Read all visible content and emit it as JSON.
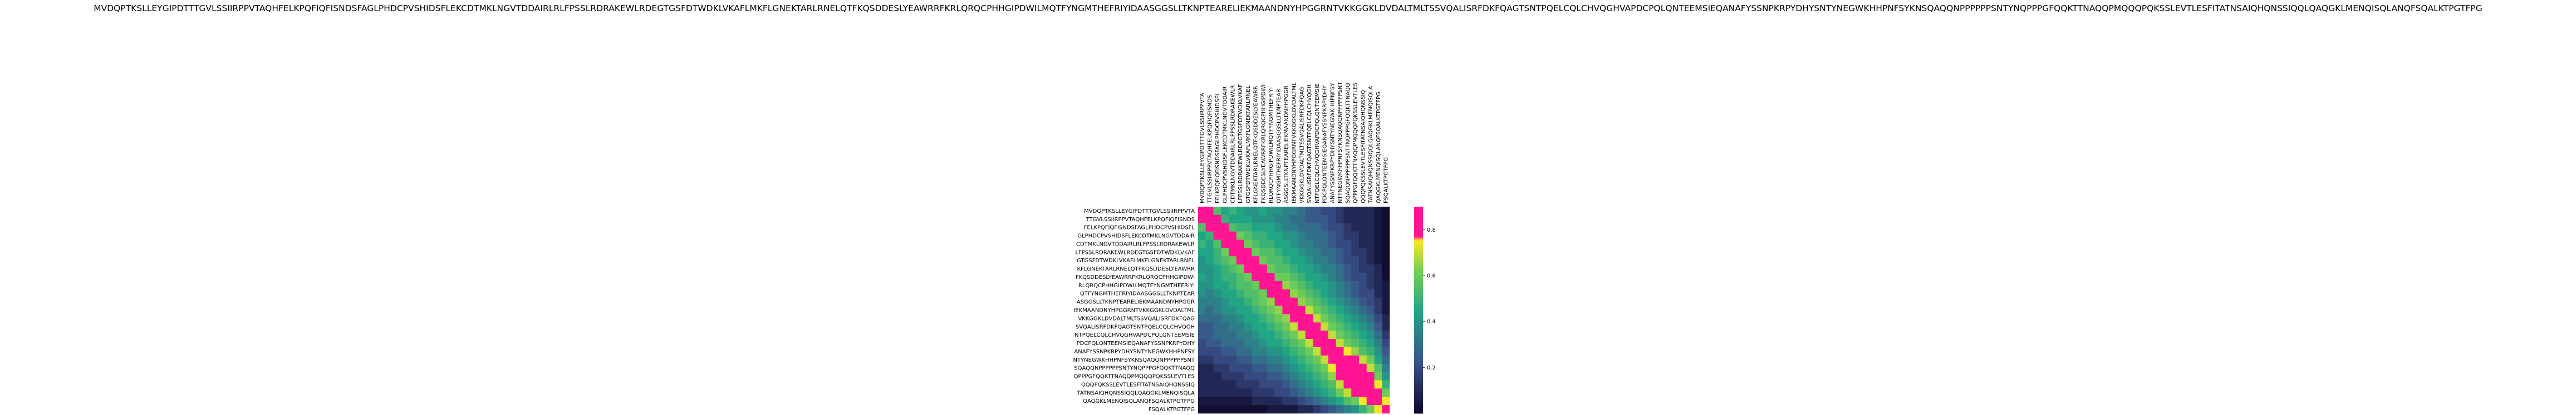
{
  "chart_data": {
    "type": "heatmap",
    "title": "MVDQPTKSLLEYGIPDTTTGVLSSIIRPPVTAQHFELKPQFIQFISNDSFAGLPHDCPVSHIDSFLEKCDTMKLNGVTDDAIRLRLFPSSLRDRAKEWLRDEGTGSFDTWDKLVKAFLMKFLGNEKTARLRNELQTFKQSDDESLYEAWRRFKRLQRQCPHHGIPDWILMQTFYNGMTHEFRIYIDAASGGSLLTKNPTEARELIEKMAANDNYHPGGRNTVKKGGKLDVDALTMLTSSVQALISRFDKFQAGTSNTPQELCQLCHVQGHVAPDCPQLQNTEEMSIEQANAFYSSNPKRPYDHYSNTYNEGWKHHPNFSYKNSQAQQNPPPPPPSNTYNQPPPGFQQKTTNAQQPMQQQPQKSSLEVTLESFITATNSAIQHQNSSIQQLQAQGKLMENQISQLANQFSQALKTPGTFPG",
    "row_labels": [
      "MVDQPTKSLLEYGIPDTTTGVLSSIIRPPVTA",
      "TTGVLSSIIRPPVTAQHFELKPQFIQFISNDS",
      "FELKPQFIQFISNDSFAGLPHDCPVSHIDSFL",
      "GLPHDCPVSHIDSFLEKCDTMKLNGVTDDAIR",
      "CDTMKLNGVTDDAIRLRLFPSSLRDRAKEWLR",
      "LFPSSLRDRAKEWLRDEGTGSFDTWDKLVKAF",
      "GTGSFDTWDKLVKAFLMKFLGNEKTARLRNEL",
      "KFLGNEKTARLRNELQTFKQSDDESLYEAWRR",
      "FKQSDDESLYEAWRRFKRLQRQCPHHGIPDWI",
      "RLQRQCPHHGIPDWILMQTFYNGMTHEFRIYI",
      "QTFYNGMTHEFRIYIDAASGGSLLTKNPTEAR",
      "ASGGSLLTKNPTEARELIEKMAANDNYHPGGR",
      "IEKMAANDNYHPGGRNTVKKGGKLDVDALTML",
      "VKKGGKLDVDALTMLTSSVQALISRFDKFQAG",
      "SVQALISRFDKFQAGTSNTPQELCQLCHVQGH",
      "NTPQELCQLCHVQGHVAPDCPQLQNTEEMSIE",
      "PDCPQLQNTEEMSIEQANAFYSSNPKRPYDHY",
      "ANAFYSSNPKRPYDHYSNTYNEGWKHHPNFSY",
      "NTYNEGWKHHPNFSYKNSQAQQNPPPPPPSNT",
      "SQAQQNPPPPPPSNTYNQPPPGFQQKTTNAQQ",
      "QPPPGFQQKTTNAQQPMQQQPQKSSLEVTLES",
      "QQQPQKSSLEVTLESFITATNSAIQHQNSSIQ",
      "TATNSAIQHQNSSIQQLQAQGKLMENQISQLA",
      "QAQGKLMENQISQLANQFSQALKTPGTFPG",
      "FSQALKTPGTFPG"
    ],
    "col_labels": [
      "MVDQPTKSLLEYGIPDTTTGVLSSIIRPPVTA",
      "TTGVLSSIIRPPVTAQHFELKPQFIQFISNDS",
      "FELKPQFIQFISNDSFAGLPHDCPVSHIDSFL",
      "GLPHDCPVSHIDSFLEKCDTMKLNGVTDDAIR",
      "CDTMKLNGVTDDAIRLRLFPSSLRDRAKEWLR",
      "LFPSSLRDRAKEWLRDEGTGSFDTWDKLVKAF",
      "GTGSFDTWDKLVKAFLMKFLGNEKTARLRNEL",
      "KFLGNEKTARLRNELQTFKQSDDESLYEAWRR",
      "FKQSDDESLYEAWRRFKRLQRQCPHHGIPDWI",
      "RLQRQCPHHGIPDWILMQTFYNGMTHEFRIYI",
      "QTFYNGMTHEFRIYIDAASGGSLLTKNPTEAR",
      "ASGGSLLTKNPTEARELIEKMAANDNYHPGGR",
      "IEKMAANDNYHPGGRNTVKKGGKLDVDALTML",
      "VKKGGKLDVDALTMLTSSVQALISRFDKFQAG",
      "SVQALISRFDKFQAGTSNTPQELCQLCHVQGH",
      "NTPQELCQLCHVQGHVAPDCPQLQNTEEMSIE",
      "PDCPQLQNTEEMSIEQANAFYSSNPKRPYDHY",
      "ANAFYSSNPKRPYDHYSNTYNEGWKHHPNFSY",
      "NTYNEGWKHHPNFSYKNSQAQQNPPPPPPSNT",
      "SQAQQNPPPPPPSNTYNQPPPGFQQKTTNAQQ",
      "QPPPGFQQKTTNAQQPMQQQPQKSSLEVTLES",
      "QQQPQKSSLEVTLESFITATNSAIQHQNSSIQ",
      "TATNSAIQHQNSSIQQLQAQGKLMENQISQLA",
      "QAQGKLMENQISQLANQFSQALKTPGTFPG",
      "FSQALKTPGTFPG"
    ],
    "values": [
      [
        0.9,
        0.8,
        0.55,
        0.45,
        0.5,
        0.45,
        0.4,
        0.4,
        0.45,
        0.4,
        0.4,
        0.35,
        0.35,
        0.3,
        0.25,
        0.25,
        0.2,
        0.2,
        0.15,
        0.1,
        0.1,
        0.1,
        0.1,
        0.05,
        0.02
      ],
      [
        0.8,
        0.9,
        0.8,
        0.5,
        0.45,
        0.45,
        0.45,
        0.4,
        0.4,
        0.4,
        0.35,
        0.35,
        0.3,
        0.3,
        0.25,
        0.25,
        0.25,
        0.2,
        0.15,
        0.1,
        0.1,
        0.1,
        0.1,
        0.05,
        0.02
      ],
      [
        0.55,
        0.8,
        0.9,
        0.8,
        0.55,
        0.5,
        0.5,
        0.45,
        0.45,
        0.45,
        0.4,
        0.35,
        0.35,
        0.3,
        0.3,
        0.3,
        0.25,
        0.2,
        0.2,
        0.15,
        0.1,
        0.1,
        0.1,
        0.05,
        0.02
      ],
      [
        0.45,
        0.5,
        0.8,
        0.9,
        0.8,
        0.6,
        0.55,
        0.5,
        0.5,
        0.45,
        0.45,
        0.4,
        0.4,
        0.35,
        0.3,
        0.3,
        0.3,
        0.25,
        0.2,
        0.15,
        0.15,
        0.1,
        0.1,
        0.05,
        0.02
      ],
      [
        0.5,
        0.45,
        0.55,
        0.8,
        0.9,
        0.8,
        0.6,
        0.55,
        0.5,
        0.5,
        0.45,
        0.45,
        0.4,
        0.35,
        0.35,
        0.3,
        0.3,
        0.25,
        0.2,
        0.2,
        0.15,
        0.1,
        0.1,
        0.05,
        0.02
      ],
      [
        0.45,
        0.45,
        0.5,
        0.6,
        0.8,
        0.9,
        0.8,
        0.6,
        0.55,
        0.55,
        0.5,
        0.45,
        0.45,
        0.4,
        0.35,
        0.35,
        0.3,
        0.3,
        0.25,
        0.2,
        0.15,
        0.15,
        0.1,
        0.05,
        0.02
      ],
      [
        0.4,
        0.45,
        0.5,
        0.55,
        0.6,
        0.8,
        0.9,
        0.8,
        0.6,
        0.55,
        0.55,
        0.5,
        0.45,
        0.45,
        0.4,
        0.35,
        0.35,
        0.3,
        0.25,
        0.2,
        0.2,
        0.15,
        0.1,
        0.05,
        0.02
      ],
      [
        0.4,
        0.4,
        0.45,
        0.5,
        0.55,
        0.6,
        0.8,
        0.9,
        0.8,
        0.6,
        0.55,
        0.55,
        0.5,
        0.45,
        0.45,
        0.4,
        0.35,
        0.35,
        0.3,
        0.25,
        0.2,
        0.15,
        0.15,
        0.1,
        0.02
      ],
      [
        0.45,
        0.4,
        0.45,
        0.5,
        0.5,
        0.55,
        0.6,
        0.8,
        0.9,
        0.8,
        0.6,
        0.6,
        0.55,
        0.5,
        0.45,
        0.45,
        0.4,
        0.35,
        0.3,
        0.25,
        0.2,
        0.2,
        0.15,
        0.1,
        0.02
      ],
      [
        0.4,
        0.4,
        0.45,
        0.45,
        0.5,
        0.55,
        0.55,
        0.6,
        0.8,
        0.9,
        0.8,
        0.65,
        0.6,
        0.55,
        0.5,
        0.45,
        0.45,
        0.4,
        0.35,
        0.3,
        0.25,
        0.2,
        0.15,
        0.1,
        0.05
      ],
      [
        0.4,
        0.35,
        0.4,
        0.45,
        0.45,
        0.5,
        0.55,
        0.55,
        0.6,
        0.8,
        0.9,
        0.8,
        0.65,
        0.6,
        0.55,
        0.5,
        0.45,
        0.4,
        0.35,
        0.3,
        0.25,
        0.2,
        0.2,
        0.1,
        0.05
      ],
      [
        0.35,
        0.35,
        0.35,
        0.4,
        0.45,
        0.45,
        0.5,
        0.55,
        0.6,
        0.65,
        0.8,
        0.9,
        0.8,
        0.65,
        0.6,
        0.55,
        0.5,
        0.45,
        0.4,
        0.35,
        0.3,
        0.25,
        0.2,
        0.15,
        0.05
      ],
      [
        0.35,
        0.3,
        0.35,
        0.4,
        0.4,
        0.45,
        0.45,
        0.5,
        0.55,
        0.6,
        0.65,
        0.8,
        0.9,
        0.8,
        0.7,
        0.6,
        0.55,
        0.5,
        0.45,
        0.4,
        0.35,
        0.3,
        0.25,
        0.15,
        0.05
      ],
      [
        0.3,
        0.3,
        0.3,
        0.35,
        0.35,
        0.4,
        0.45,
        0.45,
        0.5,
        0.55,
        0.6,
        0.65,
        0.8,
        0.9,
        0.8,
        0.7,
        0.6,
        0.55,
        0.5,
        0.45,
        0.4,
        0.35,
        0.3,
        0.2,
        0.1
      ],
      [
        0.25,
        0.25,
        0.3,
        0.3,
        0.35,
        0.35,
        0.4,
        0.45,
        0.45,
        0.5,
        0.55,
        0.6,
        0.7,
        0.8,
        0.9,
        0.8,
        0.7,
        0.6,
        0.55,
        0.5,
        0.45,
        0.4,
        0.35,
        0.25,
        0.1
      ],
      [
        0.25,
        0.25,
        0.3,
        0.3,
        0.3,
        0.35,
        0.35,
        0.4,
        0.45,
        0.45,
        0.5,
        0.55,
        0.6,
        0.7,
        0.8,
        0.9,
        0.8,
        0.7,
        0.6,
        0.55,
        0.5,
        0.45,
        0.4,
        0.3,
        0.15
      ],
      [
        0.2,
        0.25,
        0.25,
        0.3,
        0.3,
        0.3,
        0.35,
        0.35,
        0.4,
        0.45,
        0.45,
        0.5,
        0.55,
        0.6,
        0.7,
        0.8,
        0.9,
        0.8,
        0.7,
        0.6,
        0.55,
        0.5,
        0.45,
        0.35,
        0.2
      ],
      [
        0.2,
        0.2,
        0.2,
        0.25,
        0.25,
        0.3,
        0.3,
        0.35,
        0.35,
        0.4,
        0.4,
        0.45,
        0.5,
        0.55,
        0.6,
        0.7,
        0.8,
        0.9,
        0.85,
        0.75,
        0.65,
        0.55,
        0.5,
        0.4,
        0.25
      ],
      [
        0.15,
        0.15,
        0.2,
        0.2,
        0.2,
        0.25,
        0.25,
        0.3,
        0.3,
        0.35,
        0.35,
        0.4,
        0.45,
        0.5,
        0.55,
        0.6,
        0.7,
        0.85,
        0.9,
        0.9,
        0.8,
        0.7,
        0.6,
        0.45,
        0.3
      ],
      [
        0.1,
        0.1,
        0.15,
        0.15,
        0.2,
        0.2,
        0.2,
        0.25,
        0.25,
        0.3,
        0.3,
        0.35,
        0.4,
        0.45,
        0.5,
        0.55,
        0.6,
        0.75,
        0.9,
        0.9,
        0.9,
        0.8,
        0.7,
        0.55,
        0.35
      ],
      [
        0.1,
        0.1,
        0.1,
        0.15,
        0.15,
        0.15,
        0.2,
        0.2,
        0.2,
        0.25,
        0.25,
        0.3,
        0.35,
        0.4,
        0.45,
        0.5,
        0.55,
        0.65,
        0.8,
        0.9,
        0.9,
        0.9,
        0.8,
        0.6,
        0.4
      ],
      [
        0.1,
        0.1,
        0.1,
        0.1,
        0.1,
        0.15,
        0.15,
        0.15,
        0.2,
        0.2,
        0.2,
        0.25,
        0.3,
        0.35,
        0.4,
        0.45,
        0.5,
        0.55,
        0.7,
        0.8,
        0.9,
        0.9,
        0.9,
        0.75,
        0.5
      ],
      [
        0.1,
        0.1,
        0.1,
        0.1,
        0.1,
        0.1,
        0.1,
        0.15,
        0.15,
        0.15,
        0.2,
        0.2,
        0.25,
        0.3,
        0.35,
        0.4,
        0.45,
        0.5,
        0.6,
        0.7,
        0.8,
        0.9,
        0.9,
        0.85,
        0.6
      ],
      [
        0.05,
        0.05,
        0.05,
        0.05,
        0.05,
        0.05,
        0.05,
        0.1,
        0.1,
        0.1,
        0.1,
        0.15,
        0.15,
        0.2,
        0.25,
        0.3,
        0.35,
        0.4,
        0.45,
        0.55,
        0.6,
        0.75,
        0.85,
        0.9,
        0.75
      ],
      [
        0.02,
        0.02,
        0.02,
        0.02,
        0.02,
        0.02,
        0.02,
        0.02,
        0.02,
        0.05,
        0.05,
        0.05,
        0.05,
        0.1,
        0.1,
        0.15,
        0.2,
        0.25,
        0.3,
        0.35,
        0.4,
        0.5,
        0.6,
        0.75,
        0.9
      ]
    ],
    "colorbar": {
      "ticks": [
        0.2,
        0.4,
        0.6,
        0.8
      ],
      "range": [
        0.0,
        0.9
      ]
    },
    "colormap": {
      "low": "#0d0829",
      "mid1": "#3b518b",
      "mid2": "#21a685",
      "mid3": "#7ad151",
      "high": "#fde725",
      "peak": "#ff1493"
    }
  }
}
